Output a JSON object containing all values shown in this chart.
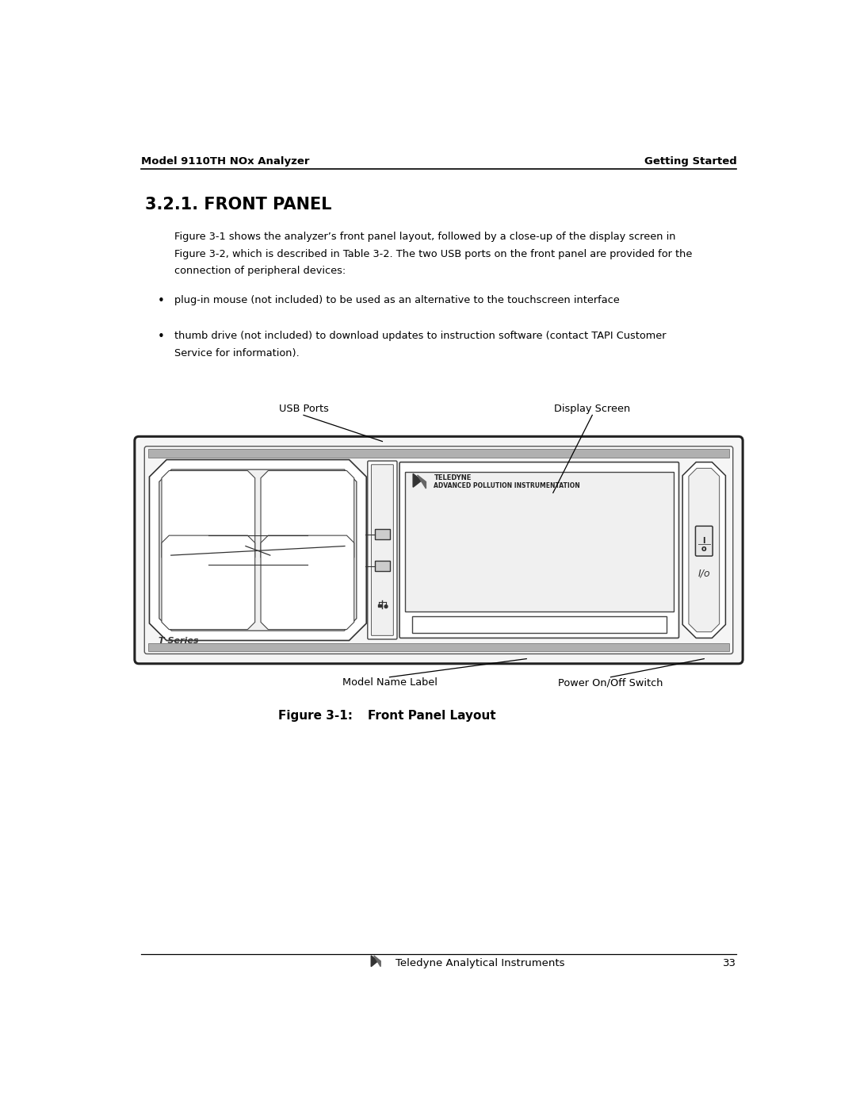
{
  "page_width": 10.8,
  "page_height": 13.97,
  "bg_color": "#ffffff",
  "header_left": "Model 9110TH NOx Analyzer",
  "header_right": "Getting Started",
  "section_title": "3.2.1. FRONT PANEL",
  "para_line1": "Figure 3-1 shows the analyzer’s front panel layout, followed by a close-up of the display screen in",
  "para_line2": "Figure 3-2, which is described in Table 3-2. The two USB ports on the front panel are provided for the",
  "para_line3": "connection of peripheral devices:",
  "bullet1": "plug-in mouse (not included) to be used as an alternative to the touchscreen interface",
  "bullet2a": "thumb drive (not included) to download updates to instruction software (contact TAPI Customer",
  "bullet2b": "Service for information).",
  "label_usb": "USB Ports",
  "label_display": "Display Screen",
  "label_model": "Model Name Label",
  "label_power": "Power On/Off Switch",
  "fig_label": "Figure 3-1:",
  "fig_title": "Front Panel Layout",
  "footer_text": "Teledyne Analytical Instruments",
  "footer_page": "33",
  "teledyne_line1": "TELEDYNE",
  "teledyne_line2": "ADVANCED POLLUTION INSTRUMENTATION",
  "t_series": "T Series",
  "io_label": "I/o",
  "switch_i": "I",
  "switch_o": "o"
}
